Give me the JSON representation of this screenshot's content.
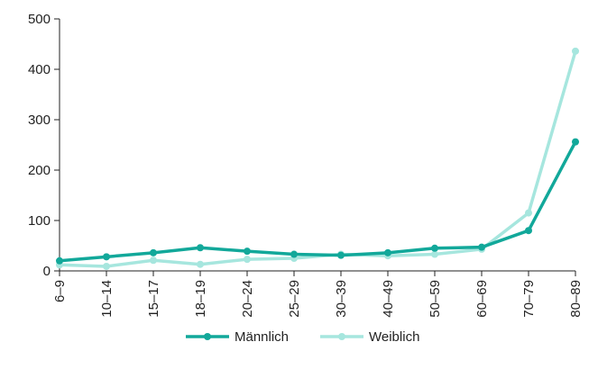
{
  "chart_data": {
    "type": "line",
    "categories": [
      "6–9",
      "10–14",
      "15–17",
      "18–19",
      "20–24",
      "25–29",
      "30–39",
      "40–49",
      "50–59",
      "60–69",
      "70–79",
      "80–89"
    ],
    "series": [
      {
        "name": "Männlich",
        "color": "#12a89a",
        "values": [
          20,
          28,
          36,
          46,
          39,
          33,
          31,
          36,
          45,
          47,
          80,
          256
        ]
      },
      {
        "name": "Weiblich",
        "color": "#a6e6de",
        "values": [
          12,
          9,
          21,
          13,
          23,
          25,
          33,
          30,
          33,
          43,
          115,
          436
        ]
      }
    ],
    "ylim": [
      0,
      500
    ],
    "yticks": [
      0,
      100,
      200,
      300,
      400,
      500
    ],
    "grid": false,
    "legend": "bottom-center",
    "title": "",
    "xlabel": "",
    "ylabel": ""
  }
}
